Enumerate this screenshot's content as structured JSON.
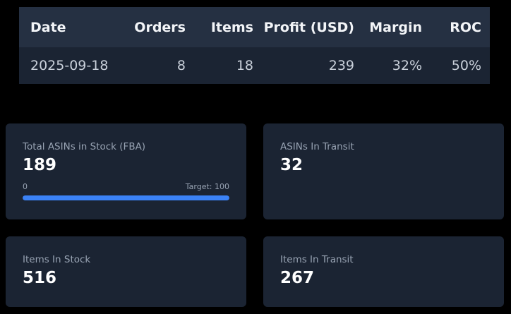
{
  "summary_table": {
    "columns": [
      "Date",
      "Orders",
      "Items",
      "Profit (USD)",
      "Margin",
      "ROC"
    ],
    "rows": [
      [
        "2025-09-18",
        "8",
        "18",
        "239",
        "32%",
        "50%"
      ]
    ]
  },
  "cards": {
    "asins_in_stock": {
      "label": "Total ASINs in Stock (FBA)",
      "value": "189",
      "progress": {
        "min_label": "0",
        "target_label": "Target: 100",
        "percent": 100
      }
    },
    "asins_in_transit": {
      "label": "ASINs In Transit",
      "value": "32"
    },
    "items_in_stock": {
      "label": "Items In Stock",
      "value": "516"
    },
    "items_in_transit": {
      "label": "Items In Transit",
      "value": "267"
    }
  },
  "colors": {
    "background": "#000000",
    "card": "#1b2433",
    "table_header": "#253042",
    "accent": "#3b82f6"
  }
}
